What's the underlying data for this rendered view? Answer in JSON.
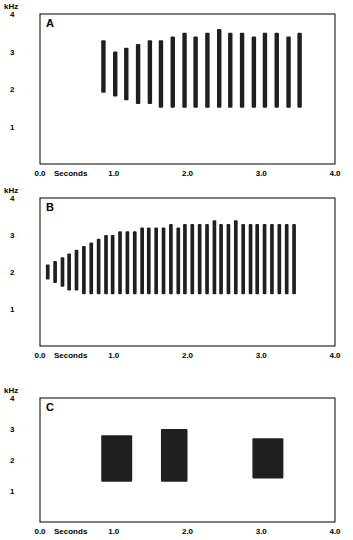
{
  "chart_data": [
    {
      "type": "spectrogram",
      "title": "A",
      "x_label": "Seconds",
      "y_label": "kHz",
      "color": "#000000",
      "xlim": [
        0,
        4
      ],
      "xticks": [
        {
          "value": 0,
          "label": "0.0"
        },
        {
          "value": 1,
          "label": "1.0"
        },
        {
          "value": 2,
          "label": "2.0"
        },
        {
          "value": 3,
          "label": "3.0"
        },
        {
          "value": 4,
          "label": "4.0"
        }
      ],
      "ylim": [
        0,
        4
      ],
      "yticks": [
        1,
        2,
        3,
        4
      ],
      "x": [
        0.83,
        0.99,
        1.14,
        1.3,
        1.46,
        1.61,
        1.77,
        1.93,
        2.08,
        2.24,
        2.4,
        2.55,
        2.71,
        2.87,
        3.02,
        3.18,
        3.34,
        3.49
      ],
      "x_end": [
        0.89,
        1.05,
        1.2,
        1.36,
        1.52,
        1.67,
        1.83,
        1.99,
        2.14,
        2.3,
        2.46,
        2.61,
        2.77,
        2.93,
        3.08,
        3.24,
        3.4,
        3.55
      ],
      "values": [
        3.3,
        3.0,
        3.1,
        3.2,
        3.3,
        3.3,
        3.4,
        3.5,
        3.4,
        3.5,
        3.6,
        3.5,
        3.5,
        3.4,
        3.5,
        3.5,
        3.4,
        3.5
      ],
      "low": [
        1.9,
        1.8,
        1.7,
        1.6,
        1.6,
        1.5,
        1.5,
        1.5,
        1.5,
        1.5,
        1.5,
        1.5,
        1.5,
        1.5,
        1.5,
        1.5,
        1.5,
        1.5
      ]
    },
    {
      "type": "spectrogram",
      "title": "B",
      "x_label": "Seconds",
      "y_label": "kHz",
      "color": "#000000",
      "xlim": [
        0,
        4
      ],
      "xticks": [
        {
          "value": 0,
          "label": "0.0"
        },
        {
          "value": 1,
          "label": "1.0"
        },
        {
          "value": 2,
          "label": "2.0"
        },
        {
          "value": 3,
          "label": "3.0"
        },
        {
          "value": 4,
          "label": "4.0"
        }
      ],
      "ylim": [
        0,
        4
      ],
      "yticks": [
        1,
        2,
        3,
        4
      ],
      "x": [
        0.08,
        0.18,
        0.28,
        0.37,
        0.47,
        0.57,
        0.67,
        0.77,
        0.87,
        0.96,
        1.06,
        1.16,
        1.26,
        1.36,
        1.45,
        1.55,
        1.65,
        1.75,
        1.85,
        1.94,
        2.04,
        2.14,
        2.24,
        2.34,
        2.43,
        2.53,
        2.63,
        2.73,
        2.83,
        2.92,
        3.02,
        3.12,
        3.22,
        3.32,
        3.42
      ],
      "x_end": [
        0.13,
        0.23,
        0.33,
        0.42,
        0.52,
        0.62,
        0.72,
        0.82,
        0.92,
        1.01,
        1.11,
        1.21,
        1.31,
        1.41,
        1.5,
        1.6,
        1.7,
        1.8,
        1.9,
        1.99,
        2.09,
        2.19,
        2.29,
        2.39,
        2.48,
        2.58,
        2.68,
        2.78,
        2.88,
        2.97,
        3.07,
        3.17,
        3.27,
        3.37,
        3.47
      ],
      "values": [
        2.2,
        2.3,
        2.4,
        2.5,
        2.6,
        2.7,
        2.8,
        2.9,
        3.0,
        3.0,
        3.1,
        3.1,
        3.1,
        3.2,
        3.2,
        3.2,
        3.2,
        3.3,
        3.2,
        3.3,
        3.3,
        3.3,
        3.3,
        3.4,
        3.3,
        3.3,
        3.4,
        3.3,
        3.3,
        3.3,
        3.3,
        3.3,
        3.3,
        3.3,
        3.3
      ],
      "low": [
        1.8,
        1.7,
        1.6,
        1.5,
        1.5,
        1.4,
        1.4,
        1.4,
        1.4,
        1.4,
        1.4,
        1.4,
        1.4,
        1.4,
        1.4,
        1.4,
        1.4,
        1.4,
        1.4,
        1.4,
        1.4,
        1.4,
        1.4,
        1.4,
        1.4,
        1.4,
        1.4,
        1.4,
        1.4,
        1.4,
        1.4,
        1.4,
        1.4,
        1.4,
        1.4
      ]
    },
    {
      "type": "spectrogram",
      "title": "C",
      "x_label": "Seconds",
      "y_label": "kHz",
      "color": "#000000",
      "xlim": [
        0,
        4
      ],
      "xticks": [
        {
          "value": 0,
          "label": "0.0"
        },
        {
          "value": 1,
          "label": "1.0"
        },
        {
          "value": 2,
          "label": "2.0"
        },
        {
          "value": 3,
          "label": "3.0"
        },
        {
          "value": 4,
          "label": "4.0"
        }
      ],
      "ylim": [
        0,
        4
      ],
      "yticks": [
        1,
        2,
        3,
        4
      ],
      "x": [
        0.83,
        1.64,
        2.88
      ],
      "x_end": [
        1.25,
        2.0,
        3.3
      ],
      "values": [
        2.8,
        3.0,
        2.7
      ],
      "low": [
        1.3,
        1.3,
        1.4
      ]
    }
  ]
}
